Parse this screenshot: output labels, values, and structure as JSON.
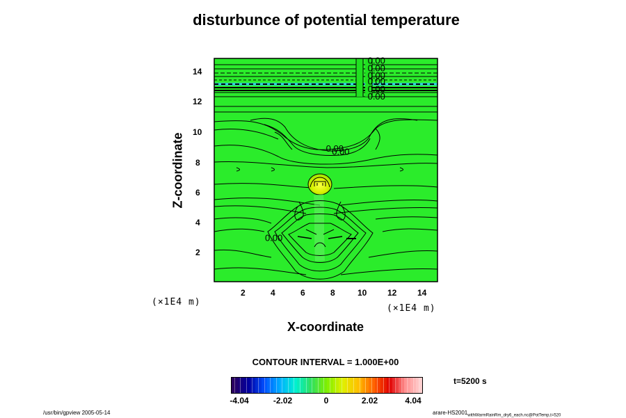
{
  "chart_data": {
    "type": "heatmap",
    "title": "disturbunce of potential temperature",
    "xlabel": "X-coordinate",
    "ylabel": "Z-coordinate",
    "x_unit": "(×1E4 m)",
    "y_unit": "(×1E4 m)",
    "xlim": [
      0,
      15
    ],
    "ylim": [
      0,
      15
    ],
    "x_ticks": [
      "2",
      "4",
      "6",
      "8",
      "10",
      "12",
      "14"
    ],
    "y_ticks": [
      "2",
      "4",
      "6",
      "8",
      "10",
      "12",
      "14"
    ],
    "contour_interval": "CONTOUR INTERVAL = 1.000E+00",
    "time_label": "t=5200 s",
    "contour_labels": [
      {
        "text": "0.00",
        "x": 10.9,
        "z": 14.8
      },
      {
        "text": "0.00",
        "x": 10.9,
        "z": 14.3
      },
      {
        "text": "0.00",
        "x": 10.9,
        "z": 13.8
      },
      {
        "text": "0.00",
        "x": 10.9,
        "z": 13.4
      },
      {
        "text": "0.00",
        "x": 10.9,
        "z": 12.9
      },
      {
        "text": "0.00",
        "x": 10.9,
        "z": 12.4
      },
      {
        "text": "0.00",
        "x": 8.1,
        "z": 8.9
      },
      {
        "text": "0.00",
        "x": 8.5,
        "z": 8.7
      },
      {
        "text": "0.00",
        "x": 4.0,
        "z": 2.9
      }
    ],
    "colorbar": {
      "min": -4.04,
      "max": 4.04,
      "ticks": [
        "-4.04",
        "-2.02",
        "0",
        "2.02",
        "4.04"
      ],
      "tick_values": [
        -4.04,
        -2.02,
        0,
        2.02,
        4.04
      ],
      "colors": [
        "#2a0060",
        "#0000a0",
        "#0050ff",
        "#00b0ff",
        "#00f0d0",
        "#30e060",
        "#80f000",
        "#e0f000",
        "#ffc000",
        "#ff6000",
        "#e00000",
        "#ff9090",
        "#ffd0d0"
      ]
    }
  },
  "footer": {
    "left": "/usr/bin/gpview 2005-05-14",
    "right_main": "arare-HS2001",
    "right_sub": "withWarmRainRm_dry6_each.nc@PotTemp,t=520"
  },
  "colors": {
    "field": "#2bec2b",
    "field_light": "#40f040",
    "warm": "#f0f000",
    "band": "#30d0d0"
  }
}
